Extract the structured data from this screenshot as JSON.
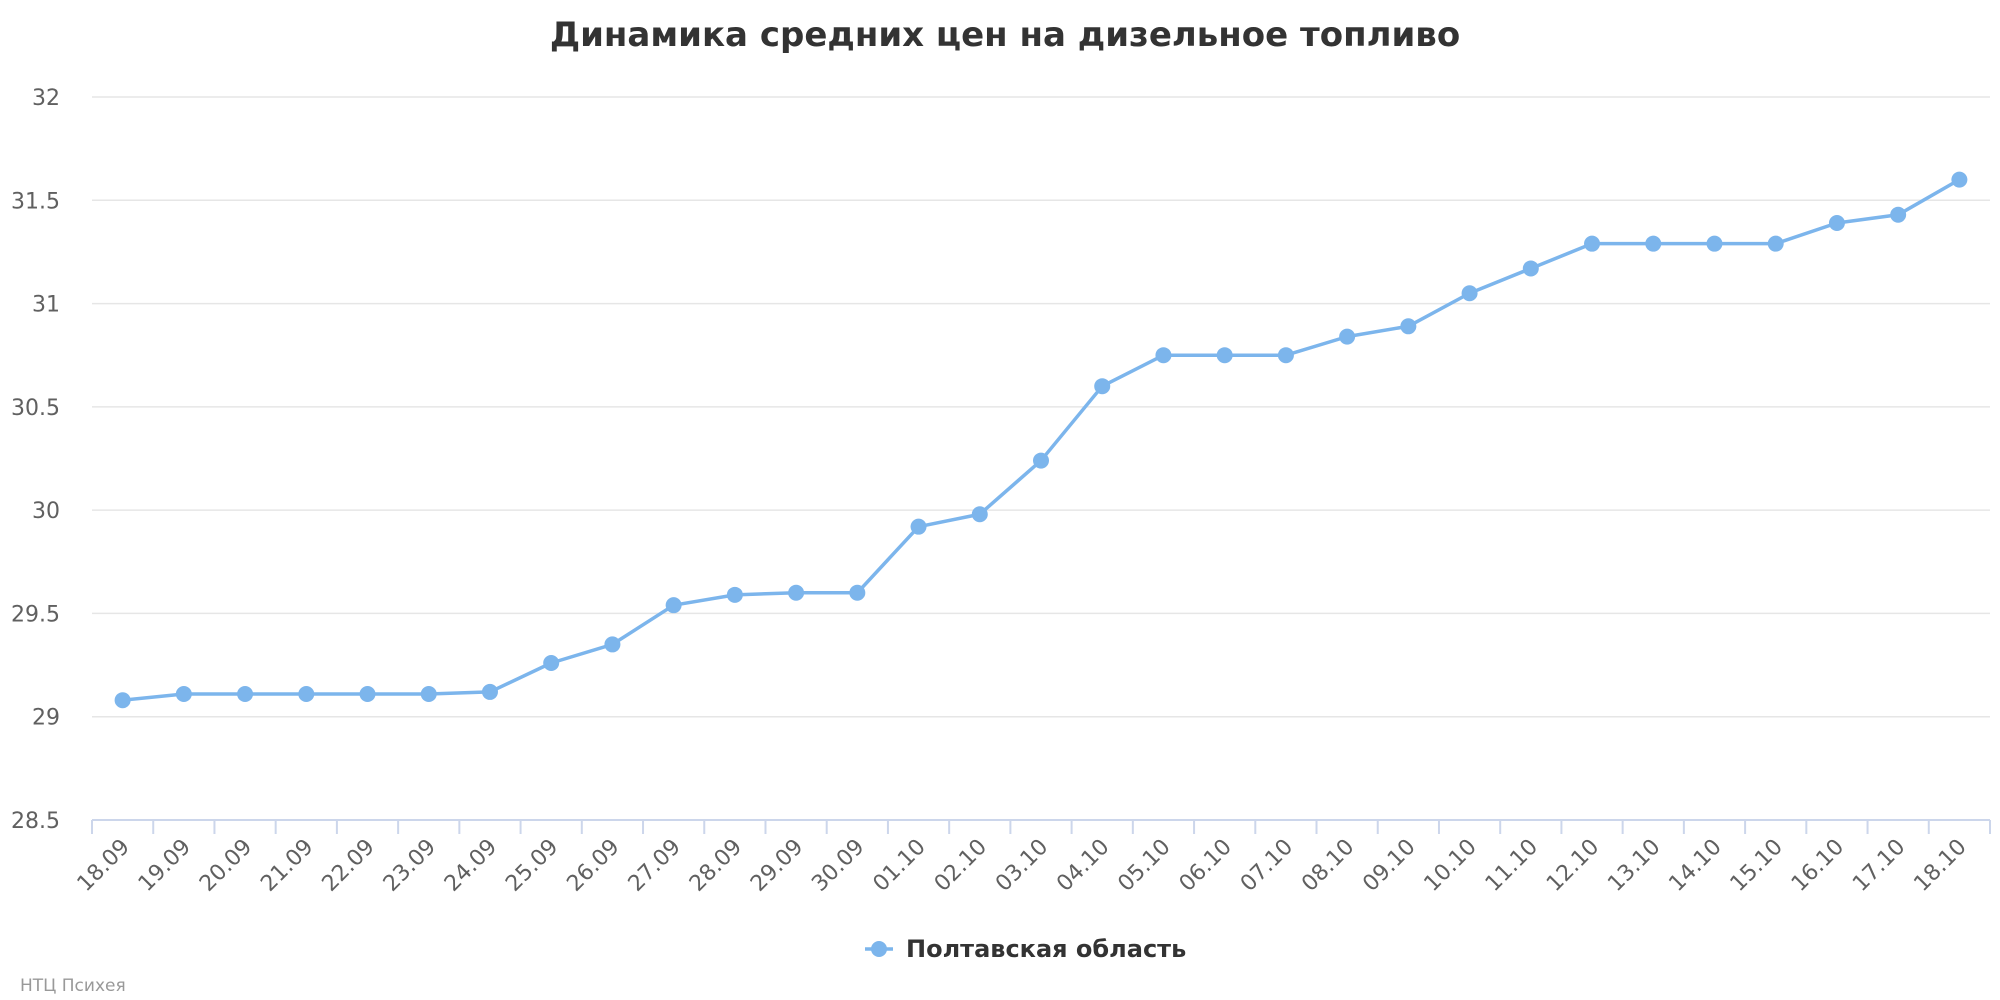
{
  "chart_data": {
    "type": "line",
    "title": "Динамика средних цен на дизельное топливо",
    "categories": [
      "18.09",
      "19.09",
      "20.09",
      "21.09",
      "22.09",
      "23.09",
      "24.09",
      "25.09",
      "26.09",
      "27.09",
      "28.09",
      "29.09",
      "30.09",
      "01.10",
      "02.10",
      "03.10",
      "04.10",
      "05.10",
      "06.10",
      "07.10",
      "08.10",
      "09.10",
      "10.10",
      "11.10",
      "12.10",
      "13.10",
      "14.10",
      "15.10",
      "16.10",
      "17.10",
      "18.10"
    ],
    "series": [
      {
        "name": "Полтавская область",
        "values": [
          29.08,
          29.11,
          29.11,
          29.11,
          29.11,
          29.11,
          29.12,
          29.26,
          29.35,
          29.54,
          29.59,
          29.6,
          29.6,
          29.92,
          29.98,
          30.24,
          30.6,
          30.75,
          30.75,
          30.75,
          30.84,
          30.89,
          31.05,
          31.17,
          31.29,
          31.29,
          31.29,
          31.29,
          31.39,
          31.43,
          31.6
        ]
      }
    ],
    "ylim": [
      28.5,
      32
    ],
    "yticks": [
      "28.5",
      "29",
      "29.5",
      "30",
      "30.5",
      "31",
      "31.5",
      "32"
    ],
    "grid": true,
    "legend_position": "bottom-center",
    "colors": {
      "series": "#7cb5ec",
      "grid": "#e6e6e6",
      "axis": "#ccd6eb"
    }
  },
  "credits": "НТЦ Психея"
}
